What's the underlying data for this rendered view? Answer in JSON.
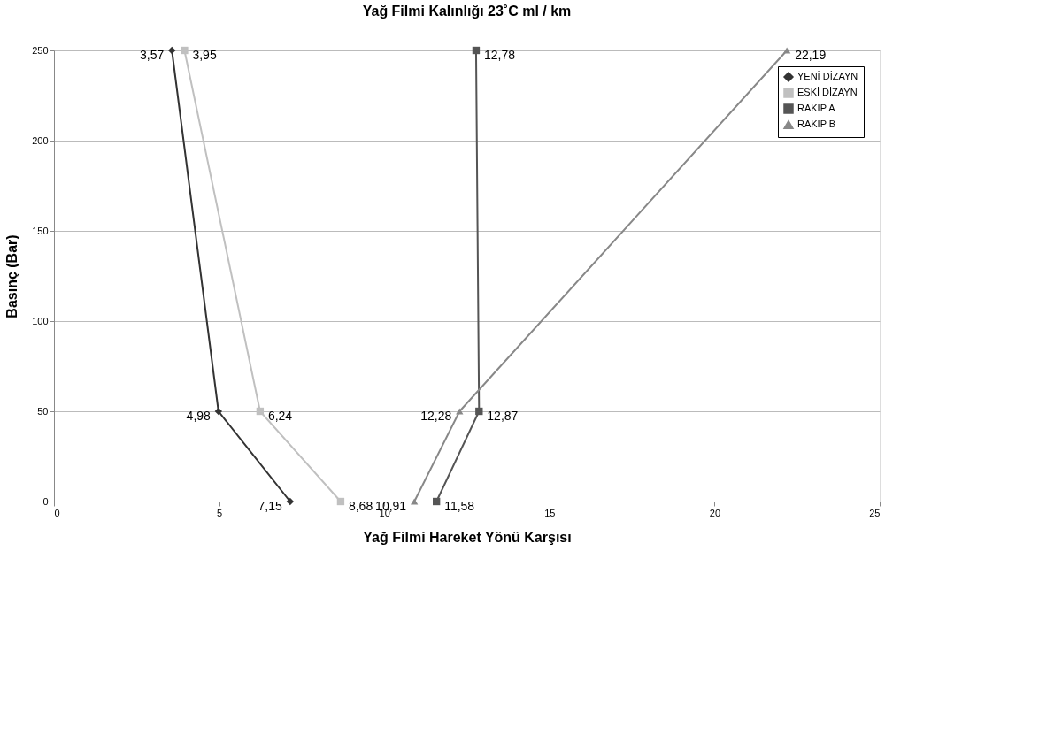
{
  "chart_data": {
    "type": "line",
    "title": "Yağ Filmi Kalınlığı 23˚C ml / km",
    "xlabel": "Yağ Filmi    Hareket Yönü Karşısı",
    "ylabel": "Basınç (Bar)",
    "xlim": [
      0,
      25
    ],
    "xticks": [
      0,
      5,
      10,
      15,
      20,
      25
    ],
    "ylim": [
      0,
      250
    ],
    "yticks": [
      0,
      50,
      100,
      150,
      200,
      250
    ],
    "grid": "y",
    "legend": "top right",
    "series": [
      {
        "name": "YENİ DİZAYN",
        "color": "#333333",
        "marker": "diamond",
        "x": [
          3.57,
          4.98,
          7.15
        ],
        "values": [
          250,
          50,
          0
        ]
      },
      {
        "name": "ESKİ DİZAYN",
        "color": "#c0c0c0",
        "marker": "square",
        "x": [
          3.95,
          6.24,
          8.68
        ],
        "values": [
          250,
          50,
          0
        ]
      },
      {
        "name": "RAKİP A",
        "color": "#555555",
        "marker": "square",
        "x": [
          12.78,
          12.87,
          11.58
        ],
        "values": [
          250,
          50,
          0
        ]
      },
      {
        "name": "RAKİP B",
        "color": "#888888",
        "marker": "triangle",
        "x": [
          22.19,
          12.28,
          10.91
        ],
        "values": [
          250,
          50,
          0
        ]
      }
    ],
    "annotations": [
      {
        "text": "3,57",
        "x": 3.57,
        "y": 250
      },
      {
        "text": "4,98",
        "x": 4.98,
        "y": 50
      },
      {
        "text": "7,15",
        "x": 7.15,
        "y": 0
      },
      {
        "text": "3,95",
        "x": 3.95,
        "y": 250
      },
      {
        "text": "6,24",
        "x": 6.24,
        "y": 50
      },
      {
        "text": "8,68",
        "x": 8.68,
        "y": 0
      },
      {
        "text": "12,78",
        "x": 12.78,
        "y": 250
      },
      {
        "text": "12,87",
        "x": 12.87,
        "y": 50
      },
      {
        "text": "11,58",
        "x": 11.58,
        "y": 0
      },
      {
        "text": "22,19",
        "x": 22.19,
        "y": 250
      },
      {
        "text": "12,28",
        "x": 12.28,
        "y": 50
      },
      {
        "text": "10,91",
        "x": 10.91,
        "y": 0
      }
    ]
  }
}
